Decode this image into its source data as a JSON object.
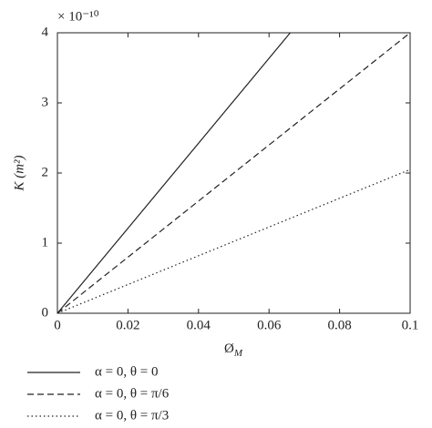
{
  "chart_data": {
    "type": "line",
    "multiplier": "× 10⁻¹⁰",
    "ylabel": "K (m²)",
    "xlabel": {
      "text": "Ø",
      "subscript": "M"
    },
    "xlim": [
      0,
      0.1
    ],
    "xticks": [
      0,
      0.02,
      0.04,
      0.06,
      0.08,
      0.1
    ],
    "ylim": [
      0,
      4
    ],
    "yticks": [
      0,
      1,
      2,
      3,
      4
    ],
    "series": [
      {
        "name": "α = 0, θ = 0",
        "color": "#222222",
        "dash": "solid",
        "x": [
          0,
          0.066
        ],
        "values": [
          0,
          4
        ]
      },
      {
        "name": "α = 0, θ = π/6",
        "color": "#222222",
        "dash": "dashed",
        "x": [
          0,
          0.1
        ],
        "values": [
          0,
          4
        ]
      },
      {
        "name": "α = 0, θ = π/3",
        "color": "#222222",
        "dash": "dotted",
        "x": [
          0,
          0.1
        ],
        "values": [
          0,
          2.05
        ]
      }
    ]
  }
}
